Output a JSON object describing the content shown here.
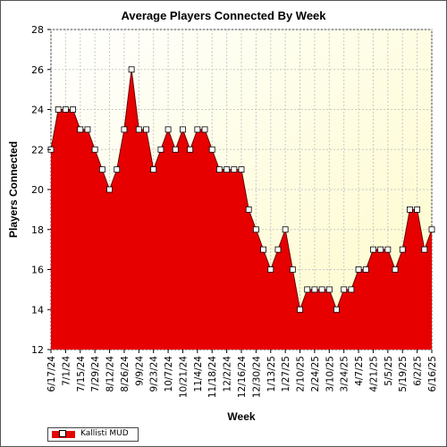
{
  "chart_data": {
    "type": "area",
    "title": "Average Players Connected By Week",
    "xlabel": "Week",
    "ylabel": "Players Connected",
    "ylim": [
      12,
      28
    ],
    "yticks": [
      12,
      14,
      16,
      18,
      20,
      22,
      24,
      26,
      28
    ],
    "grid": true,
    "legend_position": "bottom-left",
    "x_tick_labels": [
      "6/17/24",
      "7/1/24",
      "7/15/24",
      "7/29/24",
      "8/12/24",
      "8/26/24",
      "9/9/24",
      "9/23/24",
      "10/7/24",
      "10/21/24",
      "11/4/24",
      "11/18/24",
      "12/2/24",
      "12/16/24",
      "12/30/24",
      "1/13/25",
      "1/27/25",
      "2/10/25",
      "2/24/25",
      "3/10/25",
      "3/24/25",
      "4/7/25",
      "4/21/25",
      "5/5/25",
      "5/19/25",
      "6/2/25",
      "6/16/25"
    ],
    "series": [
      {
        "name": "Kallisti MUD",
        "color": "#e60000",
        "x": [
          "6/17/24",
          "6/24/24",
          "7/1/24",
          "7/8/24",
          "7/15/24",
          "7/22/24",
          "7/29/24",
          "8/5/24",
          "8/12/24",
          "8/19/24",
          "8/26/24",
          "9/2/24",
          "9/9/24",
          "9/16/24",
          "9/23/24",
          "9/30/24",
          "10/7/24",
          "10/14/24",
          "10/21/24",
          "10/28/24",
          "11/4/24",
          "11/11/24",
          "11/18/24",
          "11/25/24",
          "12/2/24",
          "12/9/24",
          "12/16/24",
          "12/23/24",
          "12/30/24",
          "1/6/25",
          "1/13/25",
          "1/20/25",
          "1/27/25",
          "2/3/25",
          "2/10/25",
          "2/17/25",
          "2/24/25",
          "3/3/25",
          "3/10/25",
          "3/17/25",
          "3/24/25",
          "3/31/25",
          "4/7/25",
          "4/14/25",
          "4/21/25",
          "4/28/25",
          "5/5/25",
          "5/12/25",
          "5/19/25",
          "5/26/25",
          "6/2/25",
          "6/9/25",
          "6/16/25"
        ],
        "values": [
          22,
          24,
          24,
          24,
          23,
          23,
          22,
          21,
          20,
          21,
          23,
          26,
          23,
          23,
          21,
          22,
          23,
          22,
          23,
          22,
          23,
          23,
          22,
          21,
          21,
          21,
          21,
          19,
          18,
          17,
          16,
          17,
          18,
          16,
          14,
          15,
          15,
          15,
          15,
          14,
          15,
          15,
          16,
          16,
          17,
          17,
          17,
          16,
          17,
          19,
          19,
          17,
          18
        ]
      }
    ]
  }
}
